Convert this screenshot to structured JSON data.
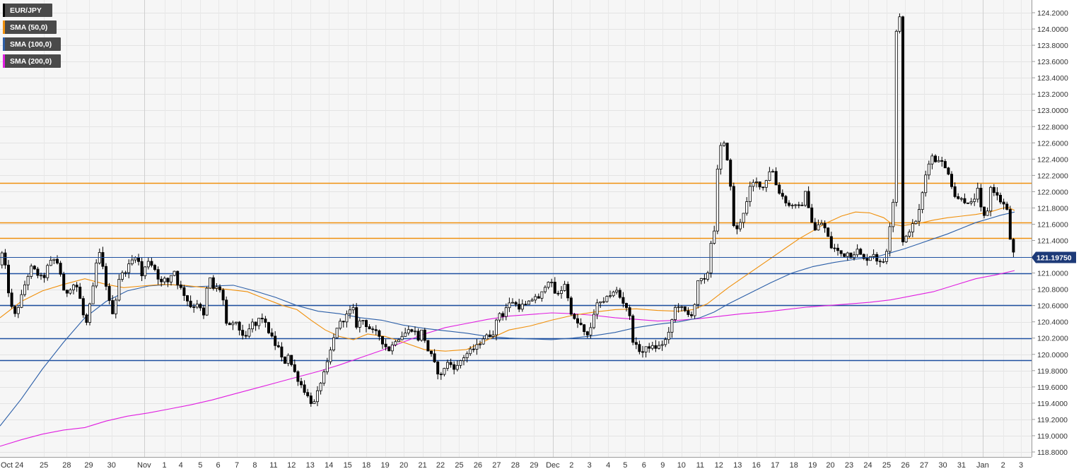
{
  "chart_data": {
    "type": "candlestick",
    "legend": [
      {
        "label": "EUR/JPY",
        "color": "#000000"
      },
      {
        "label": "SMA (50,0)",
        "color": "#f0900c"
      },
      {
        "label": "SMA (100,0)",
        "color": "#2c5fa8"
      },
      {
        "label": "SMA (200,0)",
        "color": "#e01ee0"
      }
    ],
    "ylim": [
      118.75,
      124.3
    ],
    "y_ticks": [
      "124.2000",
      "124.0000",
      "123.8000",
      "123.6000",
      "123.4000",
      "123.2000",
      "123.0000",
      "122.8000",
      "122.6000",
      "122.4000",
      "122.2000",
      "122.0000",
      "121.8000",
      "121.6000",
      "121.4000",
      "121.2000",
      "121.0000",
      "120.8000",
      "120.6000",
      "120.4000",
      "120.2000",
      "120.0000",
      "119.8000",
      "119.6000",
      "119.4000",
      "119.2000",
      "119.0000",
      "118.8000"
    ],
    "x_ticks": [
      "Oct 24",
      "25",
      "28",
      "29",
      "30",
      "Nov",
      "1",
      "4",
      "5",
      "6",
      "7",
      "8",
      "11",
      "12",
      "13",
      "14",
      "15",
      "18",
      "19",
      "20",
      "21",
      "22",
      "25",
      "26",
      "27",
      "28",
      "29",
      "Dec",
      "2",
      "3",
      "4",
      "5",
      "6",
      "9",
      "10",
      "11",
      "12",
      "13",
      "16",
      "17",
      "18",
      "19",
      "20",
      "23",
      "24",
      "25",
      "26",
      "27",
      "30",
      "31",
      "Jan",
      "2",
      "3"
    ],
    "last_price": {
      "label": "121.19750",
      "value": 121.1975
    },
    "levels": [
      {
        "value": 122.11,
        "color": "#f0900c"
      },
      {
        "value": 121.62,
        "color": "#f0900c"
      },
      {
        "value": 121.43,
        "color": "#f0900c"
      },
      {
        "value": 121.0,
        "color": "#1d4fa0"
      },
      {
        "value": 120.61,
        "color": "#1d4fa0"
      },
      {
        "value": 120.2,
        "color": "#1d4fa0"
      },
      {
        "value": 119.93,
        "color": "#1d4fa0"
      }
    ],
    "anchors": [
      [
        0,
        121.05
      ],
      [
        4,
        121.25
      ],
      [
        10,
        121.0
      ],
      [
        15,
        120.62
      ],
      [
        22,
        120.48
      ],
      [
        30,
        120.67
      ],
      [
        38,
        120.92
      ],
      [
        46,
        121.08
      ],
      [
        52,
        121.0
      ],
      [
        62,
        120.92
      ],
      [
        70,
        121.12
      ],
      [
        80,
        121.18
      ],
      [
        86,
        121.02
      ],
      [
        92,
        120.72
      ],
      [
        100,
        120.82
      ],
      [
        108,
        120.88
      ],
      [
        116,
        120.62
      ],
      [
        122,
        120.32
      ],
      [
        132,
        120.78
      ],
      [
        140,
        121.3
      ],
      [
        147,
        121.04
      ],
      [
        156,
        120.62
      ],
      [
        162,
        120.48
      ],
      [
        168,
        120.92
      ],
      [
        180,
        121.05
      ],
      [
        194,
        121.24
      ],
      [
        202,
        120.95
      ],
      [
        210,
        121.17
      ],
      [
        220,
        121.05
      ],
      [
        228,
        120.87
      ],
      [
        234,
        120.92
      ],
      [
        240,
        120.88
      ],
      [
        246,
        121.08
      ],
      [
        252,
        120.88
      ],
      [
        262,
        120.73
      ],
      [
        272,
        120.57
      ],
      [
        282,
        120.65
      ],
      [
        288,
        120.4
      ],
      [
        296,
        120.98
      ],
      [
        304,
        120.78
      ],
      [
        310,
        120.85
      ],
      [
        316,
        120.7
      ],
      [
        322,
        120.3
      ],
      [
        332,
        120.41
      ],
      [
        342,
        120.27
      ],
      [
        350,
        120.18
      ],
      [
        356,
        120.4
      ],
      [
        362,
        120.34
      ],
      [
        370,
        120.48
      ],
      [
        380,
        120.3
      ],
      [
        390,
        120.12
      ],
      [
        396,
        120.07
      ],
      [
        402,
        119.85
      ],
      [
        408,
        120.02
      ],
      [
        414,
        119.85
      ],
      [
        422,
        119.7
      ],
      [
        430,
        119.58
      ],
      [
        440,
        119.42
      ],
      [
        446,
        119.4
      ],
      [
        454,
        119.65
      ],
      [
        462,
        119.82
      ],
      [
        470,
        120.1
      ],
      [
        478,
        120.35
      ],
      [
        486,
        120.42
      ],
      [
        494,
        120.51
      ],
      [
        500,
        120.57
      ],
      [
        506,
        120.32
      ],
      [
        512,
        120.45
      ],
      [
        520,
        120.35
      ],
      [
        528,
        120.28
      ],
      [
        536,
        120.25
      ],
      [
        544,
        120.12
      ],
      [
        552,
        120.05
      ],
      [
        560,
        120.18
      ],
      [
        566,
        120.21
      ],
      [
        572,
        120.25
      ],
      [
        580,
        120.3
      ],
      [
        586,
        120.32
      ],
      [
        592,
        120.18
      ],
      [
        598,
        120.3
      ],
      [
        606,
        120.05
      ],
      [
        612,
        119.97
      ],
      [
        618,
        119.82
      ],
      [
        624,
        119.72
      ],
      [
        632,
        119.9
      ],
      [
        640,
        119.87
      ],
      [
        646,
        119.82
      ],
      [
        652,
        119.92
      ],
      [
        660,
        120.0
      ],
      [
        668,
        120.05
      ],
      [
        676,
        120.1
      ],
      [
        684,
        120.2
      ],
      [
        692,
        120.23
      ],
      [
        700,
        120.28
      ],
      [
        706,
        120.52
      ],
      [
        712,
        120.48
      ],
      [
        718,
        120.6
      ],
      [
        726,
        120.65
      ],
      [
        734,
        120.58
      ],
      [
        740,
        120.6
      ],
      [
        746,
        120.6
      ],
      [
        752,
        120.66
      ],
      [
        758,
        120.72
      ],
      [
        764,
        120.66
      ],
      [
        770,
        120.82
      ],
      [
        776,
        120.92
      ],
      [
        782,
        120.85
      ],
      [
        788,
        120.7
      ],
      [
        794,
        120.78
      ],
      [
        800,
        120.88
      ],
      [
        806,
        120.6
      ],
      [
        812,
        120.43
      ],
      [
        818,
        120.38
      ],
      [
        824,
        120.35
      ],
      [
        830,
        120.18
      ],
      [
        836,
        120.32
      ],
      [
        842,
        120.55
      ],
      [
        848,
        120.65
      ],
      [
        854,
        120.6
      ],
      [
        860,
        120.75
      ],
      [
        866,
        120.72
      ],
      [
        872,
        120.8
      ],
      [
        878,
        120.7
      ],
      [
        884,
        120.62
      ],
      [
        890,
        120.55
      ],
      [
        896,
        120.18
      ],
      [
        902,
        120.07
      ],
      [
        910,
        120.03
      ],
      [
        918,
        120.1
      ],
      [
        926,
        120.08
      ],
      [
        934,
        120.1
      ],
      [
        940,
        120.15
      ],
      [
        946,
        120.22
      ],
      [
        952,
        120.45
      ],
      [
        958,
        120.63
      ],
      [
        964,
        120.57
      ],
      [
        970,
        120.52
      ],
      [
        976,
        120.47
      ],
      [
        982,
        120.53
      ],
      [
        988,
        120.88
      ],
      [
        994,
        120.92
      ],
      [
        1000,
        120.88
      ],
      [
        1004,
        121.15
      ],
      [
        1008,
        121.5
      ],
      [
        1012,
        121.55
      ],
      [
        1016,
        122.3
      ],
      [
        1020,
        122.55
      ],
      [
        1026,
        122.58
      ],
      [
        1032,
        122.3
      ],
      [
        1038,
        121.6
      ],
      [
        1044,
        121.52
      ],
      [
        1050,
        121.7
      ],
      [
        1056,
        121.82
      ],
      [
        1062,
        122.05
      ],
      [
        1068,
        122.12
      ],
      [
        1074,
        122.1
      ],
      [
        1080,
        122.05
      ],
      [
        1086,
        122.18
      ],
      [
        1092,
        122.32
      ],
      [
        1098,
        122.1
      ],
      [
        1104,
        121.98
      ],
      [
        1110,
        121.92
      ],
      [
        1116,
        121.82
      ],
      [
        1122,
        121.85
      ],
      [
        1128,
        121.8
      ],
      [
        1134,
        121.82
      ],
      [
        1140,
        121.98
      ],
      [
        1146,
        121.78
      ],
      [
        1152,
        121.5
      ],
      [
        1158,
        121.58
      ],
      [
        1164,
        121.62
      ],
      [
        1170,
        121.5
      ],
      [
        1176,
        121.32
      ],
      [
        1182,
        121.3
      ],
      [
        1188,
        121.25
      ],
      [
        1194,
        121.22
      ],
      [
        1200,
        121.25
      ],
      [
        1206,
        121.2
      ],
      [
        1212,
        121.3
      ],
      [
        1218,
        121.22
      ],
      [
        1224,
        121.15
      ],
      [
        1230,
        121.2
      ],
      [
        1236,
        121.25
      ],
      [
        1242,
        121.15
      ],
      [
        1248,
        121.1
      ],
      [
        1254,
        121.22
      ],
      [
        1258,
        121.5
      ],
      [
        1262,
        121.75
      ],
      [
        1266,
        122.0
      ],
      [
        1269,
        124.15
      ],
      [
        1272,
        121.4
      ],
      [
        1276,
        121.35
      ],
      [
        1282,
        121.42
      ],
      [
        1288,
        121.55
      ],
      [
        1294,
        121.6
      ],
      [
        1300,
        121.72
      ],
      [
        1306,
        122.0
      ],
      [
        1312,
        122.3
      ],
      [
        1318,
        122.45
      ],
      [
        1324,
        122.38
      ],
      [
        1330,
        122.42
      ],
      [
        1336,
        122.3
      ],
      [
        1342,
        122.25
      ],
      [
        1348,
        122.05
      ],
      [
        1354,
        121.88
      ],
      [
        1360,
        121.95
      ],
      [
        1366,
        121.88
      ],
      [
        1372,
        121.82
      ],
      [
        1378,
        121.9
      ],
      [
        1384,
        122.02
      ],
      [
        1390,
        121.7
      ],
      [
        1396,
        121.68
      ],
      [
        1402,
        122.05
      ],
      [
        1408,
        122.0
      ],
      [
        1414,
        121.9
      ],
      [
        1420,
        121.85
      ],
      [
        1426,
        121.75
      ],
      [
        1430,
        121.4
      ],
      [
        1434,
        121.25
      ],
      [
        1436,
        121.2
      ]
    ],
    "sma50": [
      [
        0,
        120.45
      ],
      [
        30,
        120.65
      ],
      [
        60,
        120.78
      ],
      [
        90,
        120.86
      ],
      [
        120,
        120.93
      ],
      [
        150,
        120.86
      ],
      [
        175,
        120.82
      ],
      [
        200,
        120.84
      ],
      [
        230,
        120.86
      ],
      [
        260,
        120.85
      ],
      [
        290,
        120.82
      ],
      [
        320,
        120.8
      ],
      [
        350,
        120.77
      ],
      [
        370,
        120.7
      ],
      [
        400,
        120.6
      ],
      [
        420,
        120.55
      ],
      [
        440,
        120.42
      ],
      [
        460,
        120.3
      ],
      [
        480,
        120.22
      ],
      [
        500,
        120.18
      ],
      [
        520,
        120.25
      ],
      [
        545,
        120.22
      ],
      [
        570,
        120.15
      ],
      [
        600,
        120.06
      ],
      [
        630,
        120.04
      ],
      [
        660,
        120.06
      ],
      [
        690,
        120.18
      ],
      [
        720,
        120.3
      ],
      [
        750,
        120.35
      ],
      [
        780,
        120.42
      ],
      [
        810,
        120.48
      ],
      [
        840,
        120.52
      ],
      [
        870,
        120.55
      ],
      [
        900,
        120.56
      ],
      [
        930,
        120.54
      ],
      [
        960,
        120.53
      ],
      [
        980,
        120.55
      ],
      [
        1000,
        120.62
      ],
      [
        1030,
        120.82
      ],
      [
        1060,
        121.0
      ],
      [
        1090,
        121.18
      ],
      [
        1110,
        121.3
      ],
      [
        1130,
        121.42
      ],
      [
        1150,
        121.52
      ],
      [
        1170,
        121.62
      ],
      [
        1190,
        121.7
      ],
      [
        1210,
        121.75
      ],
      [
        1230,
        121.74
      ],
      [
        1250,
        121.68
      ],
      [
        1262,
        121.6
      ],
      [
        1275,
        121.58
      ],
      [
        1290,
        121.6
      ],
      [
        1305,
        121.62
      ],
      [
        1320,
        121.65
      ],
      [
        1340,
        121.68
      ],
      [
        1360,
        121.7
      ],
      [
        1380,
        121.72
      ],
      [
        1400,
        121.75
      ],
      [
        1415,
        121.79
      ],
      [
        1425,
        121.81
      ],
      [
        1435,
        121.77
      ]
    ],
    "sma100": [
      [
        0,
        119.12
      ],
      [
        30,
        119.45
      ],
      [
        60,
        119.82
      ],
      [
        90,
        120.15
      ],
      [
        120,
        120.45
      ],
      [
        150,
        120.65
      ],
      [
        180,
        120.78
      ],
      [
        210,
        120.84
      ],
      [
        240,
        120.86
      ],
      [
        270,
        120.83
      ],
      [
        300,
        120.84
      ],
      [
        330,
        120.85
      ],
      [
        360,
        120.78
      ],
      [
        390,
        120.7
      ],
      [
        420,
        120.6
      ],
      [
        450,
        120.53
      ],
      [
        480,
        120.5
      ],
      [
        510,
        120.45
      ],
      [
        540,
        120.42
      ],
      [
        570,
        120.36
      ],
      [
        600,
        120.32
      ],
      [
        630,
        120.29
      ],
      [
        660,
        120.26
      ],
      [
        690,
        120.22
      ],
      [
        720,
        120.2
      ],
      [
        750,
        120.19
      ],
      [
        780,
        120.18
      ],
      [
        810,
        120.2
      ],
      [
        840,
        120.23
      ],
      [
        870,
        120.27
      ],
      [
        900,
        120.33
      ],
      [
        930,
        120.37
      ],
      [
        960,
        120.4
      ],
      [
        990,
        120.45
      ],
      [
        1010,
        120.52
      ],
      [
        1030,
        120.62
      ],
      [
        1060,
        120.75
      ],
      [
        1090,
        120.88
      ],
      [
        1120,
        121.0
      ],
      [
        1150,
        121.08
      ],
      [
        1180,
        121.13
      ],
      [
        1210,
        121.17
      ],
      [
        1240,
        121.2
      ],
      [
        1260,
        121.25
      ],
      [
        1280,
        121.3
      ],
      [
        1300,
        121.36
      ],
      [
        1320,
        121.42
      ],
      [
        1340,
        121.48
      ],
      [
        1360,
        121.55
      ],
      [
        1380,
        121.62
      ],
      [
        1400,
        121.67
      ],
      [
        1415,
        121.71
      ],
      [
        1435,
        121.75
      ]
    ],
    "sma200": [
      [
        0,
        118.87
      ],
      [
        30,
        118.95
      ],
      [
        60,
        119.02
      ],
      [
        90,
        119.07
      ],
      [
        120,
        119.1
      ],
      [
        150,
        119.18
      ],
      [
        180,
        119.24
      ],
      [
        210,
        119.28
      ],
      [
        240,
        119.33
      ],
      [
        270,
        119.38
      ],
      [
        300,
        119.44
      ],
      [
        330,
        119.51
      ],
      [
        360,
        119.58
      ],
      [
        390,
        119.65
      ],
      [
        420,
        119.72
      ],
      [
        450,
        119.79
      ],
      [
        480,
        119.87
      ],
      [
        510,
        119.96
      ],
      [
        540,
        120.05
      ],
      [
        570,
        120.15
      ],
      [
        600,
        120.25
      ],
      [
        630,
        120.33
      ],
      [
        660,
        120.38
      ],
      [
        690,
        120.43
      ],
      [
        720,
        120.47
      ],
      [
        750,
        120.49
      ],
      [
        780,
        120.51
      ],
      [
        810,
        120.5
      ],
      [
        840,
        120.48
      ],
      [
        870,
        120.45
      ],
      [
        900,
        120.43
      ],
      [
        930,
        120.41
      ],
      [
        960,
        120.42
      ],
      [
        990,
        120.44
      ],
      [
        1020,
        120.47
      ],
      [
        1050,
        120.5
      ],
      [
        1080,
        120.52
      ],
      [
        1110,
        120.55
      ],
      [
        1140,
        120.58
      ],
      [
        1170,
        120.6
      ],
      [
        1200,
        120.62
      ],
      [
        1230,
        120.64
      ],
      [
        1260,
        120.67
      ],
      [
        1290,
        120.72
      ],
      [
        1320,
        120.77
      ],
      [
        1350,
        120.85
      ],
      [
        1380,
        120.93
      ],
      [
        1410,
        120.98
      ],
      [
        1435,
        121.03
      ]
    ]
  }
}
